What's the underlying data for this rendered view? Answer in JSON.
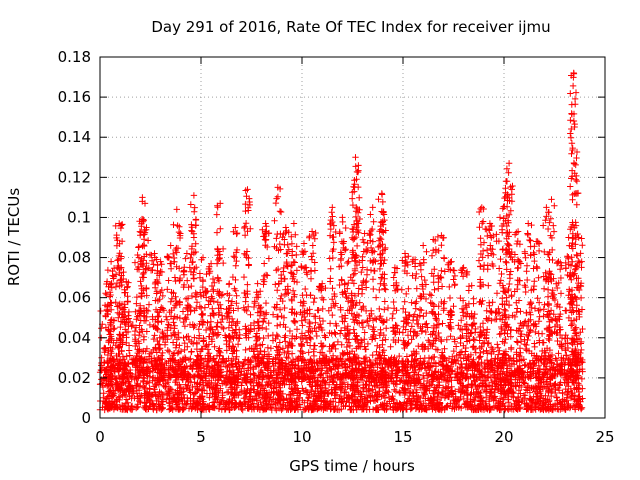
{
  "chart_data": {
    "type": "scatter",
    "title": "Day 291 of 2016, Rate Of TEC Index for receiver ijmu",
    "xlabel": "GPS time / hours",
    "ylabel": "ROTI / TECUs",
    "xlim": [
      0,
      25
    ],
    "ylim": [
      0,
      0.18
    ],
    "x_ticks": [
      "0",
      "5",
      "10",
      "15",
      "20",
      "25"
    ],
    "y_ticks": [
      "0",
      "0.02",
      "0.04",
      "0.06",
      "0.08",
      "0.1",
      "0.12",
      "0.14",
      "0.16",
      "0.18"
    ],
    "grid": true,
    "marker": "+",
    "series": [
      {
        "name": "ROTI",
        "color": "#ff0000",
        "time_range_hours": [
          0,
          23.9
        ],
        "baseline_range": [
          0.004,
          0.03
        ],
        "peaks": [
          [
            0.35,
            0.068
          ],
          [
            0.55,
            0.078
          ],
          [
            0.95,
            0.097
          ],
          [
            1.05,
            0.075
          ],
          [
            1.3,
            0.068
          ],
          [
            1.9,
            0.085
          ],
          [
            2.1,
            0.11
          ],
          [
            2.3,
            0.095
          ],
          [
            2.7,
            0.082
          ],
          [
            3.0,
            0.078
          ],
          [
            3.5,
            0.086
          ],
          [
            3.8,
            0.104
          ],
          [
            4.3,
            0.082
          ],
          [
            4.65,
            0.111
          ],
          [
            5.1,
            0.08
          ],
          [
            5.5,
            0.077
          ],
          [
            5.95,
            0.107
          ],
          [
            6.4,
            0.067
          ],
          [
            6.7,
            0.095
          ],
          [
            7.3,
            0.114
          ],
          [
            7.8,
            0.067
          ],
          [
            8.2,
            0.097
          ],
          [
            8.8,
            0.115
          ],
          [
            9.2,
            0.095
          ],
          [
            9.6,
            0.097
          ],
          [
            10.1,
            0.087
          ],
          [
            10.5,
            0.093
          ],
          [
            11.0,
            0.067
          ],
          [
            11.5,
            0.105
          ],
          [
            12.0,
            0.1
          ],
          [
            12.3,
            0.078
          ],
          [
            12.65,
            0.13
          ],
          [
            12.7,
            0.119
          ],
          [
            13.1,
            0.092
          ],
          [
            13.5,
            0.105
          ],
          [
            13.95,
            0.112
          ],
          [
            14.0,
            0.098
          ],
          [
            14.6,
            0.075
          ],
          [
            15.1,
            0.082
          ],
          [
            15.6,
            0.079
          ],
          [
            16.0,
            0.086
          ],
          [
            16.5,
            0.089
          ],
          [
            16.9,
            0.091
          ],
          [
            17.4,
            0.078
          ],
          [
            18.0,
            0.075
          ],
          [
            18.4,
            0.066
          ],
          [
            18.9,
            0.105
          ],
          [
            19.3,
            0.097
          ],
          [
            19.8,
            0.1
          ],
          [
            20.1,
            0.118
          ],
          [
            20.25,
            0.127
          ],
          [
            20.7,
            0.093
          ],
          [
            21.2,
            0.097
          ],
          [
            21.6,
            0.088
          ],
          [
            22.1,
            0.105
          ],
          [
            22.35,
            0.109
          ],
          [
            22.7,
            0.078
          ],
          [
            23.2,
            0.09
          ],
          [
            23.45,
            0.172
          ],
          [
            23.5,
            0.122
          ],
          [
            23.7,
            0.09
          ]
        ]
      }
    ]
  }
}
